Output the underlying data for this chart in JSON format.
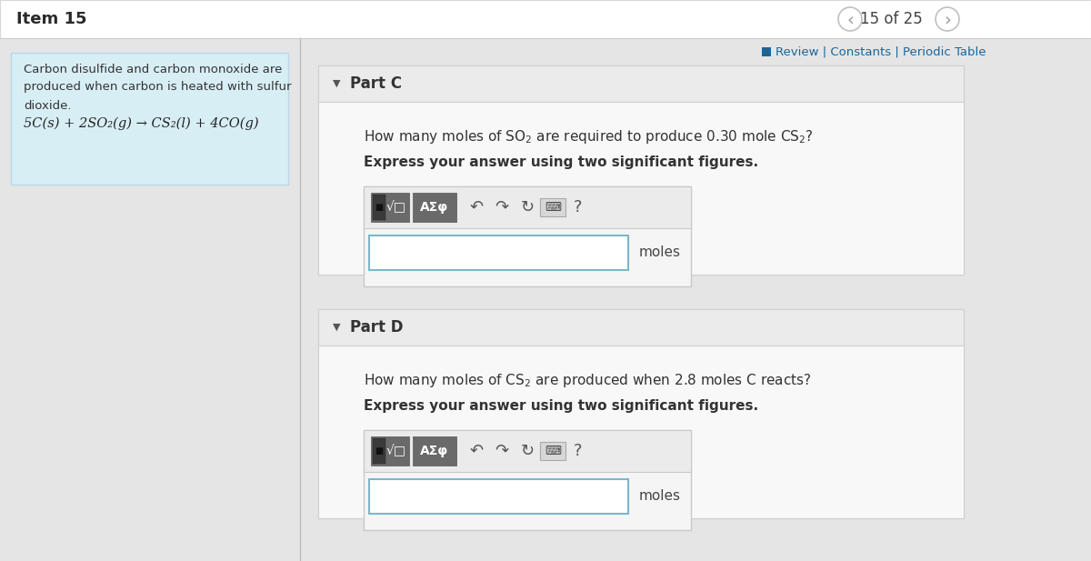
{
  "title": "Item 15",
  "nav_text": "15 of 25",
  "review_text": "Review | Constants | Periodic Table",
  "sidebar_lines": [
    "Carbon disulfide and carbon monoxide are",
    "produced when carbon is heated with sulfur",
    "dioxide.",
    "5C(s) + 2SO₂(g) → CS₂(l) + 4CO(g)"
  ],
  "partC_label": "Part C",
  "partC_question_parts": [
    {
      "text": "How many moles of ",
      "style": "normal"
    },
    {
      "text": "SO",
      "style": "normal_chem_base"
    },
    {
      "text": "2",
      "style": "subscript"
    },
    {
      "text": " are required to produce 0.30 mole ",
      "style": "normal"
    },
    {
      "text": "CS",
      "style": "normal_chem_base"
    },
    {
      "text": "2",
      "style": "subscript"
    },
    {
      "text": "?",
      "style": "normal"
    }
  ],
  "partC_bold": "Express your answer using two significant figures.",
  "partC_unit": "moles",
  "partD_label": "Part D",
  "partD_question_parts": [
    {
      "text": "How many moles of ",
      "style": "normal"
    },
    {
      "text": "CS",
      "style": "normal_chem_base"
    },
    {
      "text": "2",
      "style": "subscript"
    },
    {
      "text": " are produced when 2.8 moles C reacts?",
      "style": "normal"
    }
  ],
  "partD_bold": "Express your answer using two significant figures.",
  "partD_unit": "moles",
  "bg_color": "#e8e8e8",
  "main_bg": "#f5f5f5",
  "white": "#ffffff",
  "sidebar_bg": "#d8eef5",
  "sidebar_border": "#b8d8e8",
  "input_border": "#7ab8c8",
  "review_color": "#1a6699",
  "part_section_bg": "#efefef",
  "part_header_bg": "#e8e8e8",
  "part_label_color": "#333333",
  "question_color": "#333333",
  "toolbar_bg": "#e0e0e0",
  "btn_bg": "#7a7a7a",
  "outer_border": "#cccccc",
  "nav_circle_color": "#c0c0c0",
  "divider_color": "#d0d0d0"
}
